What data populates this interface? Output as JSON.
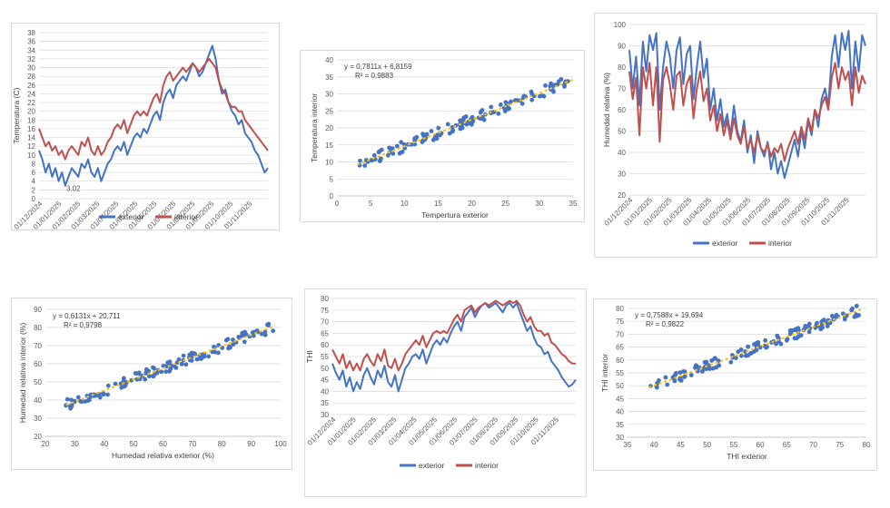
{
  "colors": {
    "exterior": "#4472c4",
    "interior": "#c0504d",
    "trend": "#ffc000",
    "grid": "#d9d9d9",
    "scatter": "#4472c4"
  },
  "date_ticks": [
    "01/12/2024",
    "01/01/2025",
    "01/02/2025",
    "01/03/2025",
    "01/04/2025",
    "01/05/2025",
    "01/06/2025",
    "01/07/2025",
    "01/08/2025",
    "01/09/2025",
    "01/10/2025",
    "01/11/2025"
  ],
  "chart_data": [
    {
      "id": "temp_ts",
      "type": "line",
      "ylabel": "Temperatura (C)",
      "xlabel": "",
      "ylim": [
        0,
        38
      ],
      "ystep": 2,
      "annotation": "3.02",
      "legend": [
        "exterior",
        "interior"
      ],
      "legend_position": "bottom",
      "grid": true,
      "x_range": [
        "2024-12-01",
        "2025-12-10"
      ],
      "series": [
        {
          "name": "exterior",
          "values": [
            11,
            9,
            6,
            8,
            5,
            7,
            4,
            6,
            3,
            5,
            7,
            6,
            5,
            8,
            7,
            9,
            6,
            5,
            7,
            4,
            6,
            8,
            9,
            11,
            12,
            11,
            13,
            10,
            12,
            14,
            15,
            14,
            16,
            15,
            17,
            19,
            20,
            18,
            22,
            24,
            25,
            23,
            26,
            27,
            28,
            27,
            29,
            31,
            30,
            28,
            29,
            31,
            33,
            35,
            32,
            27,
            24,
            25,
            22,
            20,
            19,
            17,
            18,
            15,
            14,
            13,
            11,
            10,
            8,
            6,
            7
          ]
        },
        {
          "name": "interior",
          "values": [
            16,
            14,
            12,
            13,
            11,
            12,
            10,
            11,
            9,
            11,
            12,
            11,
            10,
            13,
            12,
            14,
            11,
            10,
            12,
            10,
            11,
            13,
            14,
            16,
            17,
            16,
            18,
            15,
            17,
            19,
            20,
            19,
            20,
            19,
            21,
            23,
            24,
            22,
            26,
            28,
            29,
            27,
            28,
            29,
            30,
            29,
            30,
            31,
            30,
            29,
            30,
            31,
            32,
            31,
            30,
            27,
            25,
            24,
            22,
            21,
            21,
            20,
            20,
            18,
            17,
            16,
            15,
            14,
            13,
            12,
            11
          ]
        }
      ]
    },
    {
      "id": "temp_scatter",
      "type": "scatter",
      "xlabel": "Tempertura exterior",
      "ylabel": "Temperatura interior",
      "xlim": [
        0,
        35
      ],
      "xstep": 5,
      "ylim": [
        0,
        40
      ],
      "ystep": 5,
      "equation": "y = 0,7811x + 6,8159",
      "r2": "R² = 0,9883",
      "trend": {
        "slope": 0.7811,
        "intercept": 6.8159
      },
      "x_range": [
        3,
        35
      ],
      "noise": 0.8
    },
    {
      "id": "hum_ts",
      "type": "line",
      "ylabel": "Humedad relativa (%)",
      "xlabel": "",
      "ylim": [
        20,
        100
      ],
      "ystep": 10,
      "legend": [
        "exterior",
        "interior"
      ],
      "legend_position": "bottom",
      "grid": true,
      "x_range": [
        "2024-12-01",
        "2025-12-10"
      ],
      "series": [
        {
          "name": "exterior",
          "values": [
            88,
            70,
            85,
            62,
            92,
            78,
            95,
            88,
            96,
            60,
            80,
            92,
            85,
            70,
            88,
            94,
            72,
            86,
            90,
            65,
            80,
            92,
            75,
            84,
            60,
            70,
            55,
            65,
            52,
            58,
            48,
            62,
            50,
            45,
            55,
            40,
            48,
            35,
            50,
            42,
            38,
            45,
            32,
            40,
            30,
            36,
            28,
            34,
            40,
            46,
            38,
            50,
            42,
            55,
            48,
            60,
            52,
            65,
            70,
            62,
            85,
            95,
            80,
            96,
            88,
            97,
            70,
            92,
            78,
            95,
            90
          ]
        },
        {
          "name": "interior",
          "values": [
            78,
            65,
            75,
            48,
            80,
            70,
            82,
            62,
            80,
            45,
            74,
            80,
            72,
            60,
            76,
            78,
            62,
            72,
            76,
            56,
            70,
            78,
            64,
            70,
            55,
            62,
            50,
            58,
            48,
            55,
            46,
            56,
            48,
            44,
            52,
            42,
            46,
            40,
            48,
            42,
            40,
            44,
            38,
            42,
            40,
            44,
            36,
            42,
            46,
            50,
            44,
            52,
            46,
            56,
            50,
            60,
            56,
            62,
            66,
            60,
            75,
            82,
            70,
            80,
            74,
            78,
            62,
            80,
            68,
            76,
            72
          ]
        }
      ]
    },
    {
      "id": "hum_scatter",
      "type": "scatter",
      "xlabel": "Humedad relativa exterior (%)",
      "ylabel": "Humedad relativa interior (%)",
      "xlim": [
        20,
        100
      ],
      "xstep": 10,
      "ylim": [
        20,
        90
      ],
      "ystep": 10,
      "equation": "y = 0,6131x + 20,711",
      "r2": "R² = 0,9798",
      "trend": {
        "slope": 0.6131,
        "intercept": 20.711
      },
      "x_range": [
        27,
        98
      ],
      "noise": 1.5
    },
    {
      "id": "thi_ts",
      "type": "line",
      "ylabel": "THI",
      "xlabel": "",
      "ylim": [
        30,
        80
      ],
      "ystep": 5,
      "legend": [
        "exterior",
        "interior"
      ],
      "legend_position": "bottom",
      "grid": true,
      "x_range": [
        "2024-12-01",
        "2025-12-10"
      ],
      "series": [
        {
          "name": "exterior",
          "values": [
            52,
            48,
            45,
            49,
            42,
            46,
            40,
            44,
            41,
            47,
            50,
            46,
            43,
            49,
            46,
            51,
            44,
            42,
            47,
            40,
            45,
            50,
            52,
            55,
            56,
            54,
            58,
            52,
            56,
            60,
            62,
            60,
            63,
            61,
            65,
            68,
            70,
            66,
            72,
            74,
            76,
            72,
            75,
            77,
            78,
            76,
            77,
            78,
            76,
            74,
            77,
            78,
            76,
            78,
            74,
            70,
            66,
            68,
            63,
            60,
            59,
            56,
            57,
            53,
            51,
            49,
            46,
            44,
            42,
            43,
            45
          ]
        },
        {
          "name": "interior",
          "values": [
            58,
            55,
            52,
            56,
            50,
            53,
            49,
            52,
            49,
            54,
            56,
            53,
            51,
            56,
            53,
            58,
            51,
            50,
            54,
            49,
            52,
            56,
            58,
            60,
            62,
            60,
            64,
            59,
            62,
            65,
            66,
            65,
            66,
            65,
            68,
            71,
            73,
            70,
            75,
            76,
            77,
            74,
            76,
            77,
            78,
            77,
            78,
            79,
            78,
            77,
            78,
            79,
            78,
            79,
            77,
            73,
            70,
            72,
            68,
            66,
            66,
            64,
            65,
            61,
            60,
            58,
            56,
            55,
            53,
            52,
            52
          ]
        }
      ]
    },
    {
      "id": "thi_scatter",
      "type": "scatter",
      "xlabel": "THI exterior",
      "ylabel": "THI interior",
      "xlim": [
        35,
        80
      ],
      "xstep": 5,
      "ylim": [
        30,
        80
      ],
      "ystep": 5,
      "equation": "y = 0,7588x + 19,694",
      "r2": "R² = 0,9822",
      "trend": {
        "slope": 0.7588,
        "intercept": 19.694
      },
      "x_range": [
        39,
        79
      ],
      "noise": 1.0
    }
  ]
}
